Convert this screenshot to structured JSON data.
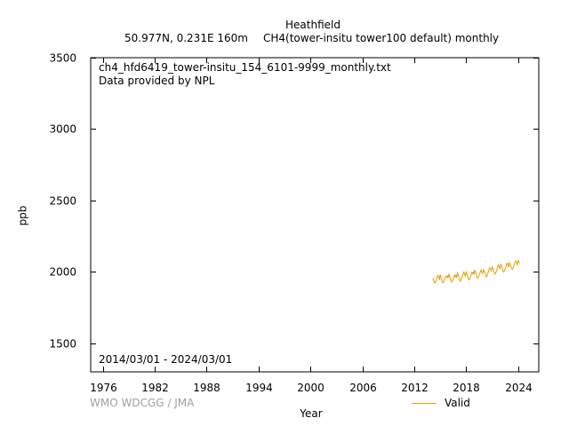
{
  "header": {
    "station": "Heathfield",
    "subtitle_left": "50.977N, 0.231E 160m",
    "subtitle_right": "CH4(tower-insitu tower100 default) monthly"
  },
  "annotations": {
    "filename": "ch4_hfd6419_tower-insitu_154_6101-9999_monthly.txt",
    "provider": "Data provided by NPL",
    "period": "2014/03/01 - 2024/03/01"
  },
  "credit": "WMO WDCGG / JMA",
  "chart_data": {
    "type": "line",
    "title": "Heathfield",
    "xlabel": "Year",
    "ylabel": "ppb",
    "xlim": [
      1974.6,
      2026.4
    ],
    "ylim": [
      1300,
      3500
    ],
    "x_ticks": [
      1976,
      1982,
      1988,
      1994,
      2000,
      2006,
      2012,
      2018,
      2024
    ],
    "y_ticks": [
      1500,
      2000,
      2500,
      3000,
      3500
    ],
    "grid": false,
    "legend": "bottom-right",
    "series": [
      {
        "name": "Valid",
        "color": "#e69f00",
        "start": "2014-03",
        "step": "1 month",
        "values": [
          1958,
          1934,
          1928,
          1922,
          1936,
          1952,
          1968,
          1976,
          1962,
          1944,
          1982,
          1964,
          1948,
          1930,
          1924,
          1932,
          1946,
          1958,
          1970,
          1962,
          1972,
          1956,
          1986,
          1970,
          1954,
          1936,
          1928,
          1936,
          1950,
          1962,
          1978,
          1966,
          1976,
          1960,
          1992,
          1980,
          1962,
          1946,
          1934,
          1942,
          1956,
          1970,
          1990,
          1998,
          1984,
          1968,
          2000,
          1990,
          1972,
          1954,
          1944,
          1950,
          1966,
          1978,
          1996,
          1988,
          2000,
          1982,
          2010,
          2002,
          1986,
          1964,
          1954,
          1960,
          1974,
          1988,
          2006,
          2012,
          2000,
          1984,
          2016,
          2010,
          1996,
          1976,
          1964,
          1972,
          1986,
          2002,
          2022,
          2030,
          2018,
          2002,
          2036,
          2028,
          2014,
          1994,
          1984,
          1990,
          2004,
          2018,
          2040,
          2048,
          2036,
          2020,
          2052,
          2044,
          2030,
          2010,
          2000,
          2006,
          2020,
          2034,
          2056,
          2062,
          2048,
          2032,
          2064,
          2058,
          2044,
          2026,
          2018,
          2024,
          2038,
          2052,
          2070,
          2076,
          2064,
          2050,
          2080,
          2074,
          2060
        ]
      }
    ]
  }
}
